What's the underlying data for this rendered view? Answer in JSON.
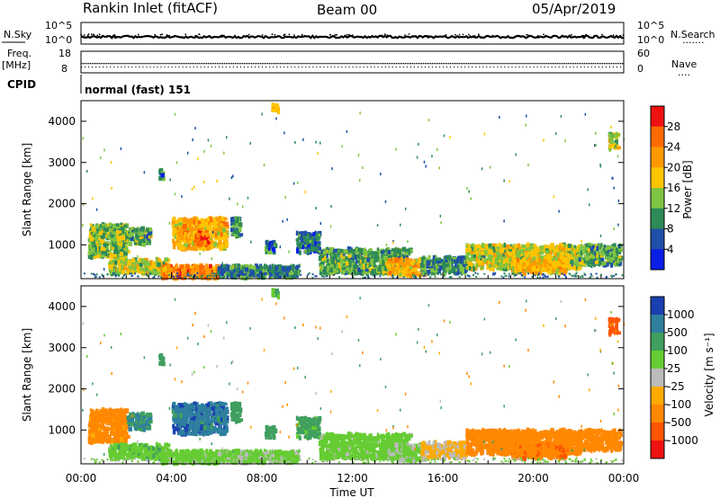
{
  "header": {
    "title": "Rankin Inlet (fitACF)",
    "beam": "Beam 00",
    "date": "05/Apr/2019"
  },
  "strip_nsky": {
    "left_label": "N.Sky",
    "left_ticks": [
      "10^5",
      "10^0"
    ],
    "right_ticks": [
      "10^5",
      "10^0"
    ],
    "right_label": "N.Search",
    "right_dots": "......."
  },
  "strip_freq": {
    "left_label_1": "Freq.",
    "left_label_2": "[MHz]",
    "left_ticks": [
      "18",
      "8"
    ],
    "right_ticks": [
      "60",
      "0"
    ],
    "right_label": "Nave",
    "right_dots": "...."
  },
  "cpid": {
    "label": "CPID",
    "text": "normal (fast) 151"
  },
  "panels": {
    "power_title": "Power [dB]",
    "velocity_title": "Velocity [m s⁻¹]",
    "ylabel": "Slant Range [km]",
    "y_ticks": [
      "4000",
      "3000",
      "2000",
      "1000"
    ]
  },
  "colorbars": {
    "power": {
      "labels": [
        "28",
        "24",
        "20",
        "16",
        "12",
        "8",
        "4"
      ],
      "colors": [
        "#ee1111",
        "#ff6a00",
        "#ff9900",
        "#ffc400",
        "#7fc442",
        "#2e8b57",
        "#1f4fa8",
        "#0a1ee6"
      ]
    },
    "velocity": {
      "labels": [
        "1000",
        "500",
        "100",
        "25",
        "-25",
        "-100",
        "-500",
        "-1000"
      ],
      "colors": [
        "#1a3fb0",
        "#2f7f9f",
        "#3f9f5f",
        "#66cc33",
        "#bbbbbb",
        "#ffaa00",
        "#ff8800",
        "#ff5500",
        "#ee1111"
      ]
    }
  },
  "xaxis": {
    "ticks": [
      "00:00",
      "04:00",
      "08:00",
      "12:00",
      "16:00",
      "20:00",
      "00:00"
    ],
    "label": "Time UT"
  },
  "chart_data": {
    "type": "heatmap",
    "x_range": [
      0,
      24
    ],
    "x_unit": "Time UT",
    "y_range": [
      180,
      4500
    ],
    "ylabel": "Slant Range [km]",
    "power_scale": [
      0,
      32
    ],
    "velocity_scale": [
      -1000,
      1000
    ],
    "regions": [
      {
        "t0": 0.3,
        "t1": 2.0,
        "r0": 700,
        "r1": 1500,
        "power": 14,
        "vel": -150
      },
      {
        "t0": 2.0,
        "t1": 3.0,
        "r0": 1000,
        "r1": 1400,
        "power": 12,
        "vel": 500
      },
      {
        "t0": 1.2,
        "t1": 3.8,
        "r0": 300,
        "r1": 650,
        "power": 16,
        "vel": 70
      },
      {
        "t0": 3.5,
        "t1": 6.0,
        "r0": 180,
        "r1": 500,
        "power": 24,
        "vel": 60
      },
      {
        "t0": 4.0,
        "t1": 6.4,
        "r0": 900,
        "r1": 1650,
        "power": 20,
        "vel": 800
      },
      {
        "t0": 5.0,
        "t1": 5.6,
        "r0": 1000,
        "r1": 1300,
        "power": 28,
        "vel": 800
      },
      {
        "t0": 6.6,
        "t1": 7.0,
        "r0": 1200,
        "r1": 1650,
        "power": 10,
        "vel": 300
      },
      {
        "t0": 8.1,
        "t1": 8.5,
        "r0": 800,
        "r1": 1100,
        "power": 8,
        "vel": 300
      },
      {
        "t0": 6.0,
        "t1": 9.6,
        "r0": 200,
        "r1": 500,
        "power": 10,
        "vel": 50
      },
      {
        "t0": 9.5,
        "t1": 10.5,
        "r0": 800,
        "r1": 1300,
        "power": 8,
        "vel": 150
      },
      {
        "t0": 10.5,
        "t1": 14.5,
        "r0": 300,
        "r1": 900,
        "power": 12,
        "vel": 60
      },
      {
        "t0": 13.5,
        "t1": 15.2,
        "r0": 250,
        "r1": 650,
        "power": 20,
        "vel": 40
      },
      {
        "t0": 15.0,
        "t1": 17.0,
        "r0": 300,
        "r1": 700,
        "power": 10,
        "vel": -40
      },
      {
        "t0": 17.0,
        "t1": 22.0,
        "r0": 400,
        "r1": 1000,
        "power": 16,
        "vel": -250
      },
      {
        "t0": 19.0,
        "t1": 21.5,
        "r0": 300,
        "r1": 650,
        "power": 20,
        "vel": -400
      },
      {
        "t0": 22.0,
        "t1": 23.8,
        "r0": 500,
        "r1": 1000,
        "power": 12,
        "vel": -300
      },
      {
        "t0": 23.3,
        "t1": 23.7,
        "r0": 3300,
        "r1": 3700,
        "power": 16,
        "vel": -700
      },
      {
        "t0": 3.4,
        "t1": 3.6,
        "r0": 2600,
        "r1": 2800,
        "power": 8,
        "vel": 300
      },
      {
        "t0": 8.4,
        "t1": 8.7,
        "r0": 4200,
        "r1": 4400,
        "power": 20,
        "vel": 100
      }
    ]
  }
}
